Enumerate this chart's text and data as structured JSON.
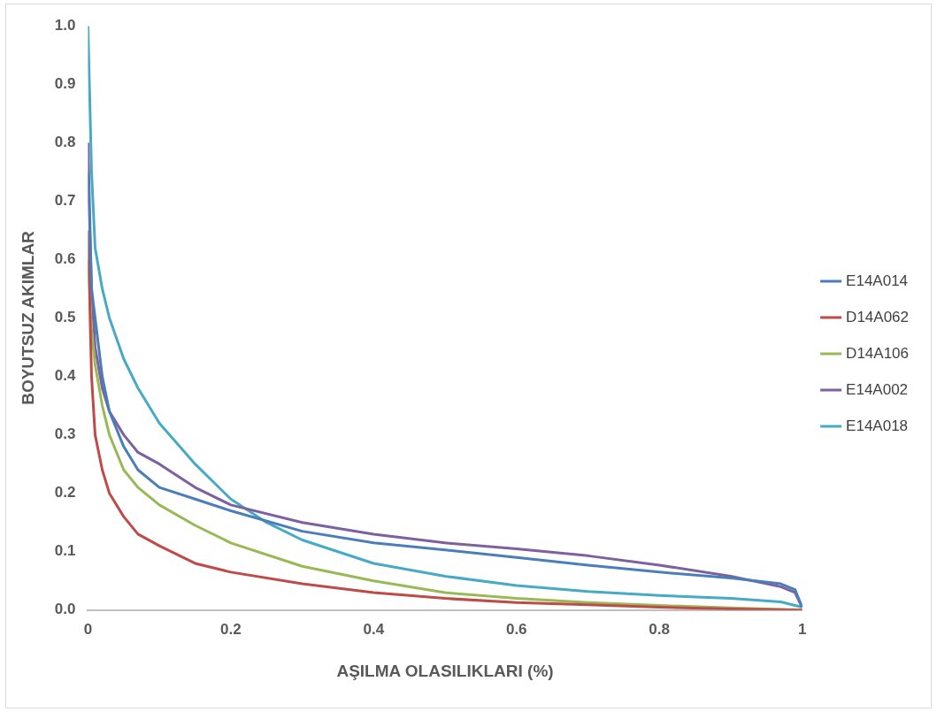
{
  "chart_data": {
    "type": "line",
    "xlabel": "AŞILMA OLASILIKLARI (%)",
    "ylabel": "BOYUTSUZ AKIMLAR",
    "xlim": [
      0,
      1
    ],
    "xticks": [
      0,
      0.2,
      0.4,
      0.6,
      0.8,
      1
    ],
    "ylim": [
      0,
      1
    ],
    "yticks": [
      {
        "value": 0,
        "label": "0.0"
      },
      0.1,
      0.2,
      0.3,
      0.4,
      0.5,
      0.6,
      0.7,
      0.8,
      0.9,
      {
        "value": 1,
        "label": "1.0"
      }
    ],
    "grid": false,
    "legend": "right",
    "marker": "none",
    "line_style": "solid",
    "series": [
      {
        "name": "E14A014",
        "color": "#4a7ebb",
        "x": [
          0,
          0.005,
          0.01,
          0.02,
          0.03,
          0.05,
          0.07,
          0.1,
          0.15,
          0.2,
          0.3,
          0.4,
          0.5,
          0.6,
          0.7,
          0.8,
          0.9,
          0.97,
          0.99,
          1
        ],
        "values": [
          0.75,
          0.55,
          0.5,
          0.4,
          0.34,
          0.28,
          0.24,
          0.21,
          0.19,
          0.17,
          0.135,
          0.115,
          0.103,
          0.09,
          0.077,
          0.065,
          0.055,
          0.045,
          0.035,
          0.005
        ]
      },
      {
        "name": "D14A062",
        "color": "#be4b48",
        "x": [
          0,
          0.005,
          0.01,
          0.02,
          0.03,
          0.05,
          0.07,
          0.1,
          0.15,
          0.2,
          0.3,
          0.4,
          0.5,
          0.6,
          0.7,
          0.8,
          0.9,
          1
        ],
        "values": [
          0.65,
          0.4,
          0.3,
          0.24,
          0.2,
          0.16,
          0.13,
          0.11,
          0.08,
          0.065,
          0.045,
          0.03,
          0.02,
          0.013,
          0.009,
          0.005,
          0.002,
          0
        ]
      },
      {
        "name": "D14A106",
        "color": "#98b954",
        "x": [
          0,
          0.005,
          0.01,
          0.02,
          0.03,
          0.05,
          0.07,
          0.1,
          0.15,
          0.2,
          0.3,
          0.4,
          0.5,
          0.6,
          0.7,
          0.8,
          0.9,
          1
        ],
        "values": [
          0.6,
          0.48,
          0.42,
          0.35,
          0.3,
          0.24,
          0.21,
          0.18,
          0.145,
          0.115,
          0.075,
          0.05,
          0.03,
          0.02,
          0.013,
          0.008,
          0.004,
          0
        ]
      },
      {
        "name": "E14A002",
        "color": "#7d60a0",
        "x": [
          0,
          0.005,
          0.01,
          0.02,
          0.03,
          0.05,
          0.07,
          0.1,
          0.15,
          0.2,
          0.3,
          0.4,
          0.5,
          0.6,
          0.7,
          0.8,
          0.9,
          0.97,
          0.99,
          1
        ],
        "values": [
          0.8,
          0.55,
          0.45,
          0.38,
          0.34,
          0.3,
          0.27,
          0.25,
          0.21,
          0.18,
          0.15,
          0.13,
          0.115,
          0.105,
          0.093,
          0.077,
          0.058,
          0.04,
          0.03,
          0.005
        ]
      },
      {
        "name": "E14A018",
        "color": "#46aac5",
        "x": [
          0,
          0.005,
          0.01,
          0.02,
          0.03,
          0.05,
          0.07,
          0.1,
          0.15,
          0.2,
          0.25,
          0.3,
          0.4,
          0.5,
          0.6,
          0.7,
          0.8,
          0.9,
          0.97,
          1
        ],
        "values": [
          1.0,
          0.75,
          0.62,
          0.55,
          0.5,
          0.43,
          0.38,
          0.32,
          0.25,
          0.19,
          0.15,
          0.12,
          0.08,
          0.058,
          0.042,
          0.032,
          0.025,
          0.02,
          0.014,
          0.005
        ]
      }
    ]
  }
}
